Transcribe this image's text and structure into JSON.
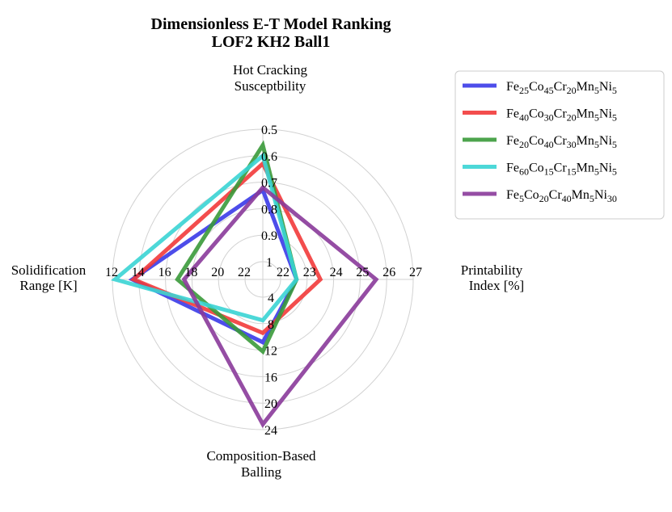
{
  "chart_data": {
    "type": "radar",
    "title_lines": [
      "Dimensionless E-T Model Ranking",
      "LOF2 KH2 Ball1"
    ],
    "axes": [
      {
        "key": "hcs",
        "label_lines": [
          "Hot Cracking",
          "Susceptbility"
        ],
        "ticks": [
          "0.5",
          "0.6",
          "0.7",
          "0.8",
          "0.9",
          "1"
        ],
        "tick_rings": [
          5,
          4,
          3,
          2,
          1,
          0
        ],
        "range": [
          1.0,
          0.5
        ],
        "reversed": true
      },
      {
        "key": "pi",
        "label_lines": [
          "Printability",
          "Index [%]"
        ],
        "ticks": [
          "22",
          "23",
          "24",
          "25",
          "26",
          "27"
        ],
        "tick_rings": [
          0,
          1,
          2,
          3,
          4,
          5
        ],
        "range": [
          22,
          27
        ],
        "reversed": false
      },
      {
        "key": "cbb",
        "label_lines": [
          "Composition-Based",
          "Balling"
        ],
        "ticks": [
          "4",
          "8",
          "12",
          "16",
          "20",
          "24"
        ],
        "tick_rings": [
          0,
          1,
          2,
          3,
          4,
          5
        ],
        "range": [
          4,
          24
        ],
        "reversed": false
      },
      {
        "key": "sr",
        "label_lines": [
          "Solidification",
          "Range [K]"
        ],
        "ticks": [
          "22",
          "20",
          "18",
          "16",
          "14",
          "12"
        ],
        "tick_rings": [
          0,
          1,
          2,
          3,
          4,
          5
        ],
        "range": [
          22,
          12
        ],
        "reversed": true
      }
    ],
    "series": [
      {
        "name": "Fe25Co45Cr20Mn5Ni5",
        "color": "#3a3ae8",
        "label": [
          [
            "Fe",
            "25"
          ],
          [
            "Co",
            "45"
          ],
          [
            "Cr",
            "20"
          ],
          [
            "Mn",
            "5"
          ],
          [
            "Ni",
            "5"
          ]
        ],
        "values": {
          "hcs": 0.73,
          "pi": 22.6,
          "cbb": 10.8,
          "sr": 13.5
        }
      },
      {
        "name": "Fe40Co30Cr20Mn5Ni5",
        "color": "#f23a3a",
        "label": [
          [
            "Fe",
            "40"
          ],
          [
            "Co",
            "30"
          ],
          [
            "Cr",
            "20"
          ],
          [
            "Mn",
            "5"
          ],
          [
            "Ni",
            "5"
          ]
        ],
        "values": {
          "hcs": 0.63,
          "pi": 23.5,
          "cbb": 9.4,
          "sr": 13.6
        }
      },
      {
        "name": "Fe20Co40Cr30Mn5Ni5",
        "color": "#3a9a3a",
        "label": [
          [
            "Fe",
            "20"
          ],
          [
            "Co",
            "40"
          ],
          [
            "Cr",
            "30"
          ],
          [
            "Mn",
            "5"
          ],
          [
            "Ni",
            "5"
          ]
        ],
        "values": {
          "hcs": 0.56,
          "pi": 22.6,
          "cbb": 12.2,
          "sr": 16.9
        }
      },
      {
        "name": "Fe60Co15Cr15Mn5Ni5",
        "color": "#3ad4d4",
        "label": [
          [
            "Fe",
            "60"
          ],
          [
            "Co",
            "15"
          ],
          [
            "Cr",
            "15"
          ],
          [
            "Mn",
            "5"
          ],
          [
            "Ni",
            "5"
          ]
        ],
        "values": {
          "hcs": 0.6,
          "pi": 22.6,
          "cbb": 7.5,
          "sr": 12.2
        }
      },
      {
        "name": "Fe5Co20Cr40Mn5Ni30",
        "color": "#8a3a9a",
        "label": [
          [
            "Fe",
            "5"
          ],
          [
            "Co",
            "20"
          ],
          [
            "Cr",
            "40"
          ],
          [
            "Mn",
            "5"
          ],
          [
            "Ni",
            "30"
          ]
        ],
        "values": {
          "hcs": 0.72,
          "pi": 25.6,
          "cbb": 23.2,
          "sr": 17.4
        }
      }
    ],
    "legend_position": "top-right",
    "grid": true
  }
}
